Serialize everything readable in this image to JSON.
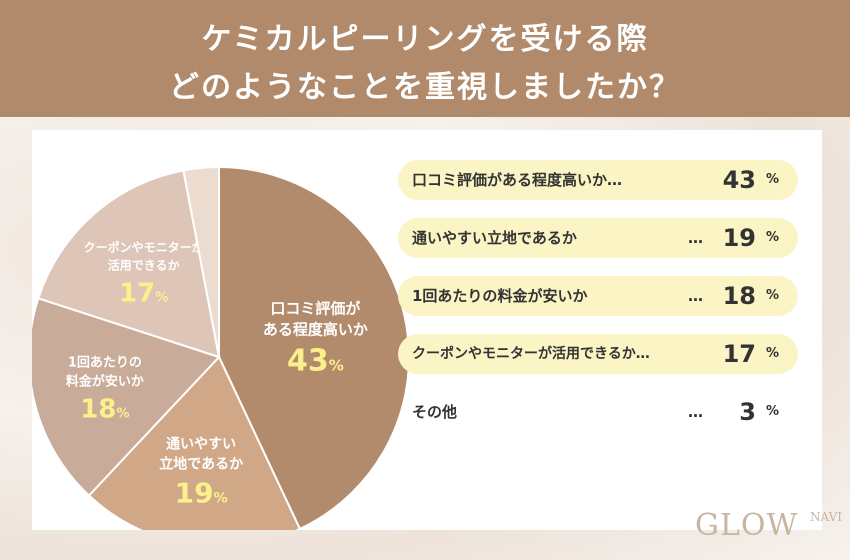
{
  "header": {
    "title_line1": "ケミカルピーリングを受ける際",
    "title_line2": "どのようなことを重視しましたか？"
  },
  "colors": {
    "header_bg": "#b08a6b",
    "slice_1": "#b28a6c",
    "slice_2": "#d0a888",
    "slice_3": "#c8ab98",
    "slice_4": "#ddc6b7",
    "slice_5": "#ecdccf",
    "pill_bg": "#fbf4c4",
    "percent_text": "#fbf08a"
  },
  "chart_data": {
    "type": "pie",
    "unit": "%",
    "slices": [
      {
        "label": "口コミ評価がある程度高いか",
        "pie_label_lines": [
          "口コミ評価が",
          "ある程度高いか"
        ],
        "legend_label": "口コミ評価がある程度高いか…",
        "value": 43
      },
      {
        "label": "通いやすい立地であるか",
        "pie_label_lines": [
          "通いやすい",
          "立地であるか"
        ],
        "legend_label": "通いやすい立地であるか",
        "value": 19
      },
      {
        "label": "1回あたりの料金が安いか",
        "pie_label_lines": [
          "1回あたりの",
          "料金が安いか"
        ],
        "legend_label": "1回あたりの料金が安いか",
        "value": 18
      },
      {
        "label": "クーポンやモニターが活用できるか",
        "pie_label_lines": [
          "クーポンやモニターが",
          "活用できるか"
        ],
        "legend_label": "クーポンやモニターが活用できるか…",
        "value": 17
      },
      {
        "label": "その他",
        "pie_label_lines": [],
        "legend_label": "その他",
        "value": 3
      }
    ]
  },
  "legend": {
    "dots": "…",
    "unit": "%"
  },
  "logo": {
    "text": "GLOW",
    "suffix": "NAVI"
  }
}
